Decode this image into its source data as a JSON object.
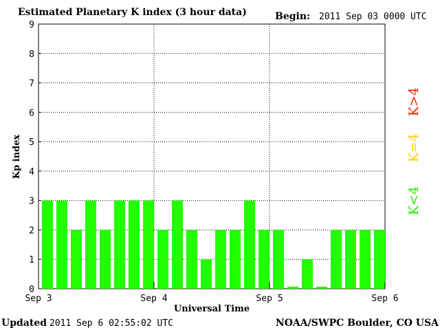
{
  "header": {
    "title": "Estimated Planetary K index (3 hour data)",
    "begin_label": "Begin:",
    "begin_value": "2011 Sep 03 0000 UTC"
  },
  "footer": {
    "updated_label": "Updated",
    "updated_value": "2011 Sep  6 02:55:02 UTC",
    "source": "NOAA/SWPC Boulder, CO USA"
  },
  "legend": {
    "items": [
      {
        "label": "K>4",
        "color": "#ff2200"
      },
      {
        "label": "K=4",
        "color": "#ffcc00"
      },
      {
        "label": "K<4",
        "color": "#22ee00"
      }
    ]
  },
  "chart_data": {
    "type": "bar",
    "title": "Estimated Planetary K index (3 hour data)",
    "xlabel": "Universal Time",
    "ylabel": "Kp index",
    "ylim": [
      0,
      9
    ],
    "yticks": [
      0,
      1,
      2,
      3,
      4,
      5,
      6,
      7,
      8,
      9
    ],
    "xticks": [
      "Sep 3",
      "Sep 4",
      "Sep 5",
      "Sep 6"
    ],
    "grid": true,
    "bar_color": "#22ff00",
    "interval_hours": 3,
    "values": [
      3,
      3,
      2,
      3,
      2,
      3,
      3,
      3,
      2,
      3,
      2,
      1,
      2,
      2,
      3,
      2,
      2,
      0,
      1,
      0,
      2,
      2,
      2,
      2
    ]
  }
}
